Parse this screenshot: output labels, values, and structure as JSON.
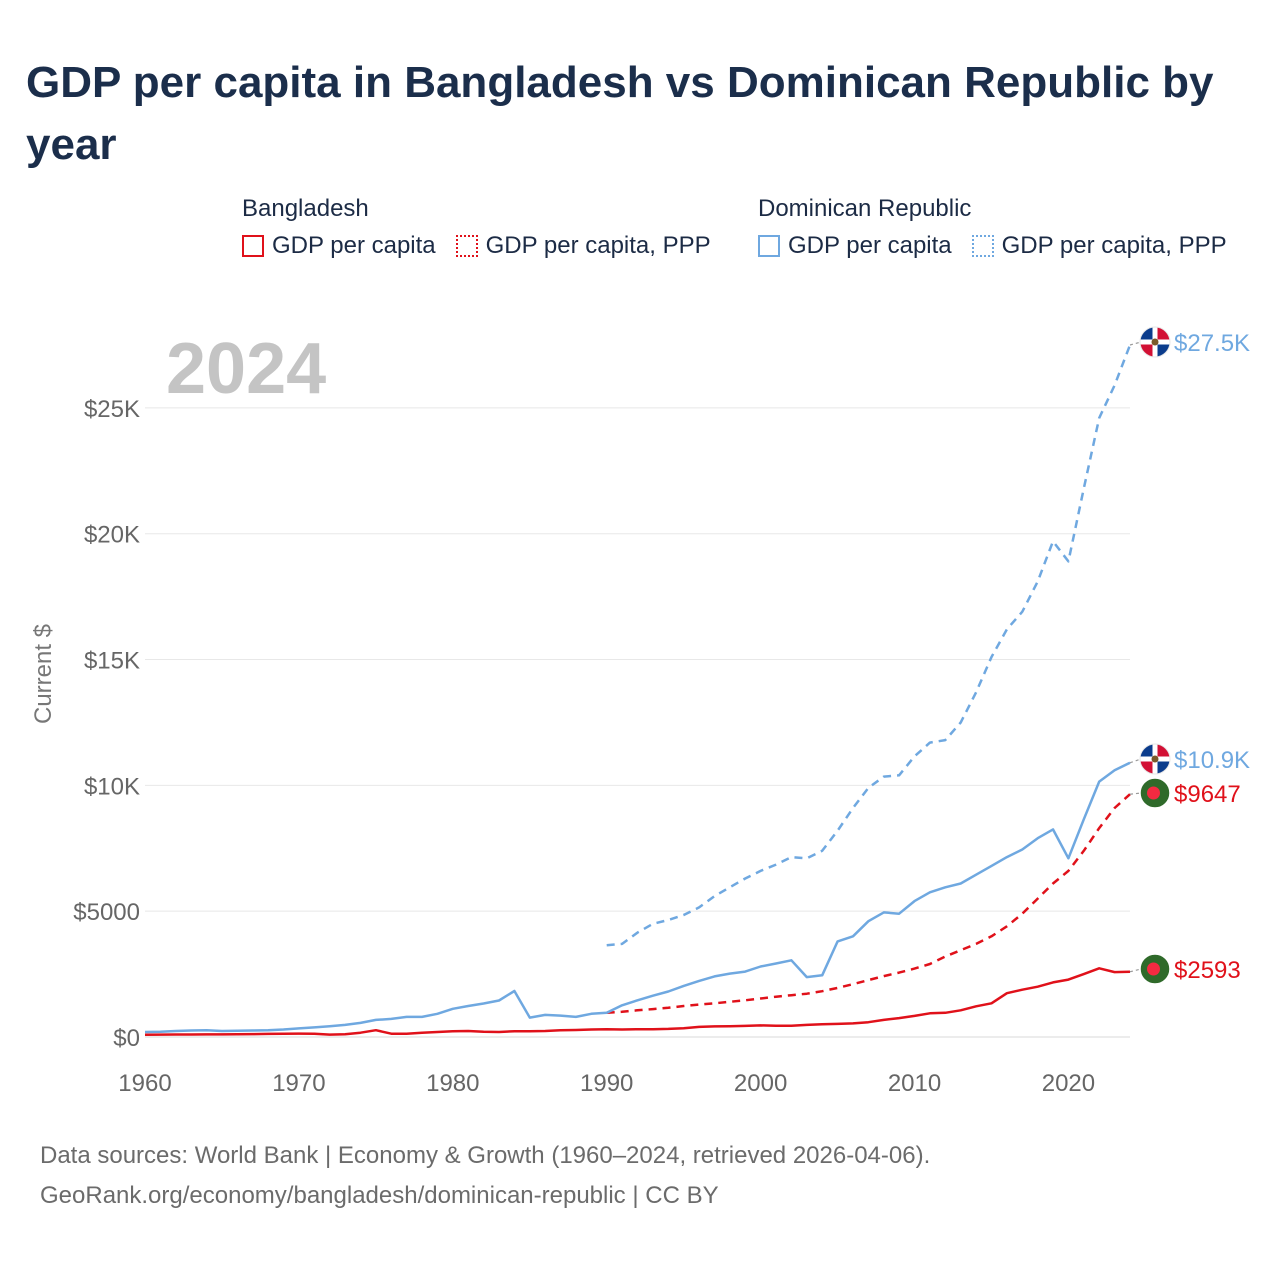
{
  "title": "GDP per capita in Bangladesh vs Dominican Republic by year",
  "legend": {
    "groups": [
      {
        "heading": "Bangladesh",
        "items": [
          "GDP per capita",
          "GDP per capita, PPP"
        ]
      },
      {
        "heading": "Dominican Republic",
        "items": [
          "GDP per capita",
          "GDP per capita, PPP"
        ]
      }
    ]
  },
  "colors": {
    "bangladesh": "#e0111a",
    "dominican_republic": "#6fa8e0"
  },
  "footer": {
    "line1": "Data sources: World Bank | Economy & Growth (1960–2024, retrieved 2026-04-06).",
    "line2": "GeoRank.org/economy/bangladesh/dominican-republic | CC BY"
  },
  "chart_data": {
    "type": "line",
    "year_label": "2024",
    "ylabel": "Current $",
    "xlim": [
      1960,
      2024
    ],
    "ylim": [
      0,
      27500
    ],
    "x_ticks": [
      1960,
      1970,
      1980,
      1990,
      2000,
      2010,
      2020
    ],
    "x_tick_labels": [
      "1960",
      "1970",
      "1980",
      "1990",
      "2000",
      "2010",
      "2020"
    ],
    "y_ticks": [
      0,
      5000,
      10000,
      15000,
      20000,
      25000
    ],
    "y_tick_labels": [
      "$0",
      "$5000",
      "$10K",
      "$15K",
      "$20K",
      "$25K"
    ],
    "end_labels": {
      "dr_ppp": "$27.5K",
      "dr_gdp": "$10.9K",
      "bd_ppp": "$9647",
      "bd_gdp": "$2593"
    },
    "series": [
      {
        "name": "Bangladesh GDP per capita",
        "country": "Bangladesh",
        "dashed": false,
        "x": [
          1960,
          1961,
          1962,
          1963,
          1964,
          1965,
          1966,
          1967,
          1968,
          1969,
          1970,
          1971,
          1972,
          1973,
          1974,
          1975,
          1976,
          1977,
          1978,
          1979,
          1980,
          1981,
          1982,
          1983,
          1984,
          1985,
          1986,
          1987,
          1988,
          1989,
          1990,
          1991,
          1992,
          1993,
          1994,
          1995,
          1996,
          1997,
          1998,
          1999,
          2000,
          2001,
          2002,
          2003,
          2004,
          2005,
          2006,
          2007,
          2008,
          2009,
          2010,
          2011,
          2012,
          2013,
          2014,
          2015,
          2016,
          2017,
          2018,
          2019,
          2020,
          2021,
          2022,
          2023,
          2024
        ],
        "values": [
          90,
          95,
          98,
          100,
          102,
          105,
          110,
          115,
          125,
          130,
          135,
          130,
          95,
          110,
          170,
          270,
          130,
          130,
          170,
          200,
          230,
          240,
          210,
          200,
          230,
          230,
          240,
          270,
          280,
          300,
          310,
          300,
          310,
          310,
          320,
          350,
          400,
          420,
          430,
          440,
          460,
          450,
          450,
          480,
          510,
          520,
          540,
          590,
          680,
          750,
          840,
          940,
          960,
          1060,
          1220,
          1340,
          1740,
          1880,
          2000,
          2170,
          2280,
          2500,
          2730,
          2580,
          2593
        ]
      },
      {
        "name": "Bangladesh GDP per capita, PPP",
        "country": "Bangladesh",
        "dashed": true,
        "x": [
          1990,
          1991,
          1992,
          1993,
          1994,
          1995,
          1996,
          1997,
          1998,
          1999,
          2000,
          2001,
          2002,
          2003,
          2004,
          2005,
          2006,
          2007,
          2008,
          2009,
          2010,
          2011,
          2012,
          2013,
          2014,
          2015,
          2016,
          2017,
          2018,
          2019,
          2020,
          2021,
          2022,
          2023,
          2024
        ],
        "values": [
          960,
          1000,
          1060,
          1110,
          1160,
          1230,
          1290,
          1340,
          1400,
          1460,
          1530,
          1600,
          1660,
          1720,
          1820,
          1950,
          2100,
          2260,
          2420,
          2560,
          2720,
          2900,
          3200,
          3450,
          3700,
          4000,
          4400,
          4900,
          5500,
          6100,
          6600,
          7400,
          8300,
          9100,
          9647
        ]
      },
      {
        "name": "Dominican Republic GDP per capita",
        "country": "Dominican Republic",
        "dashed": false,
        "x": [
          1960,
          1961,
          1962,
          1963,
          1964,
          1965,
          1966,
          1967,
          1968,
          1969,
          1970,
          1971,
          1972,
          1973,
          1974,
          1975,
          1976,
          1977,
          1978,
          1979,
          1980,
          1981,
          1982,
          1983,
          1984,
          1985,
          1986,
          1987,
          1988,
          1989,
          1990,
          1991,
          1992,
          1993,
          1994,
          1995,
          1996,
          1997,
          1998,
          1999,
          2000,
          2001,
          2002,
          2003,
          2004,
          2005,
          2006,
          2007,
          2008,
          2009,
          2010,
          2011,
          2012,
          2013,
          2014,
          2015,
          2016,
          2017,
          2018,
          2019,
          2020,
          2021,
          2022,
          2023,
          2024
        ],
        "values": [
          200,
          210,
          240,
          260,
          270,
          240,
          250,
          260,
          270,
          300,
          340,
          380,
          430,
          480,
          560,
          680,
          720,
          800,
          800,
          920,
          1120,
          1230,
          1330,
          1450,
          1830,
          770,
          880,
          850,
          800,
          920,
          960,
          1260,
          1460,
          1640,
          1810,
          2030,
          2230,
          2410,
          2520,
          2600,
          2800,
          2920,
          3050,
          2380,
          2450,
          3800,
          4000,
          4600,
          4950,
          4900,
          5400,
          5750,
          5950,
          6100,
          6450,
          6800,
          7150,
          7450,
          7900,
          8250,
          7100,
          8650,
          10150,
          10600,
          10900
        ]
      },
      {
        "name": "Dominican Republic GDP per capita, PPP",
        "country": "Dominican Republic",
        "dashed": true,
        "x": [
          1990,
          1991,
          1992,
          1993,
          1994,
          1995,
          1996,
          1997,
          1998,
          1999,
          2000,
          2001,
          2002,
          2003,
          2004,
          2005,
          2006,
          2007,
          2008,
          2009,
          2010,
          2011,
          2012,
          2013,
          2014,
          2015,
          2016,
          2017,
          2018,
          2019,
          2020,
          2021,
          2022,
          2023,
          2024
        ],
        "values": [
          3650,
          3700,
          4150,
          4500,
          4650,
          4850,
          5150,
          5600,
          5950,
          6300,
          6600,
          6850,
          7150,
          7100,
          7400,
          8200,
          9100,
          9900,
          10350,
          10400,
          11150,
          11700,
          11800,
          12500,
          13700,
          15100,
          16200,
          16900,
          18100,
          19700,
          18900,
          21800,
          24600,
          25900,
          27500
        ]
      }
    ]
  }
}
